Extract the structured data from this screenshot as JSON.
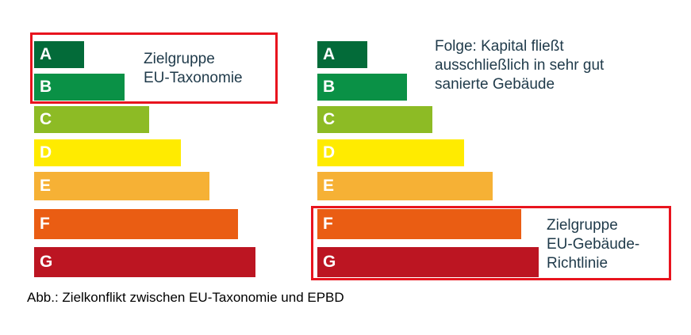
{
  "chart_data": {
    "type": "bar",
    "left_scale": {
      "categories": [
        "A",
        "B",
        "C",
        "D",
        "E",
        "F",
        "G"
      ],
      "colors": [
        "#036b39",
        "#0a9146",
        "#8dbb25",
        "#ffeb00",
        "#f6b135",
        "#ea5d13",
        "#bc1522"
      ],
      "highlight_label": [
        "Zielgruppe",
        "EU-Taxonomie"
      ]
    },
    "right_scale": {
      "categories": [
        "A",
        "B",
        "C",
        "D",
        "E",
        "F",
        "G"
      ],
      "colors": [
        "#036b39",
        "#0a9146",
        "#8dbb25",
        "#ffeb00",
        "#f6b135",
        "#ea5d13",
        "#bc1522"
      ],
      "highlight_label": [
        "Zielgruppe",
        "EU-Gebäude-",
        "Richtlinie"
      ],
      "note": [
        "Folge: Kapital fließt",
        "ausschließlich in sehr gut",
        "sanierte Gebäude"
      ]
    }
  },
  "caption": "Abb.: Zielkonflikt zwischen EU-Taxonomie und EPBD"
}
